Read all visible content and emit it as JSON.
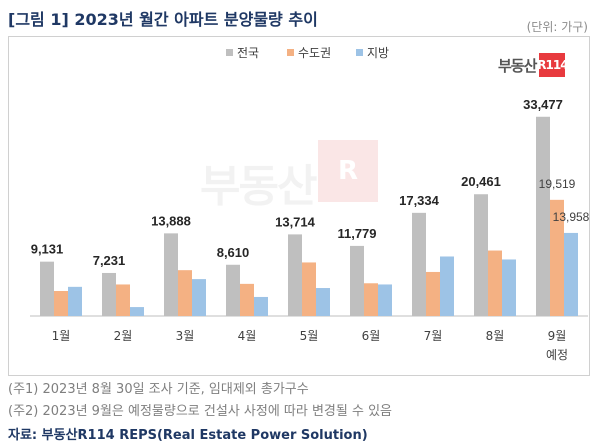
{
  "header": {
    "title": "[그림 1] 2023년 월간 아파트 분양물량 추이",
    "unit": "(단위: 가구)"
  },
  "logo": {
    "text": "부동산",
    "box": "R114"
  },
  "notes": [
    "(주1) 2023년 8월 30일 조사 기준, 임대제외 총가구수",
    "(주2) 2023년 9월은 예정물량으로 건설사 사정에 따라 변경될 수 있음"
  ],
  "source": "자료: 부동산R114 REPS(Real Estate Power Solution)",
  "chart_data": {
    "type": "bar",
    "categories": [
      "1월",
      "2월",
      "3월",
      "4월",
      "5월",
      "6월",
      "7월",
      "8월",
      "9월\n예정"
    ],
    "series": [
      {
        "name": "전국",
        "color": "#bfbfbf",
        "values": [
          9131,
          7231,
          13888,
          8610,
          13714,
          11779,
          17334,
          20461,
          33477
        ]
      },
      {
        "name": "수도권",
        "color": "#f4b183",
        "values": [
          4200,
          5300,
          7700,
          5400,
          9000,
          5500,
          7400,
          11000,
          19519
        ]
      },
      {
        "name": "지방",
        "color": "#9dc3e6",
        "values": [
          4900,
          1500,
          6200,
          3200,
          4700,
          5300,
          10000,
          9500,
          13958
        ]
      }
    ],
    "total_labels": [
      "9,131",
      "7,231",
      "13,888",
      "8,610",
      "13,714",
      "11,779",
      "17,334",
      "20,461",
      "33,477"
    ],
    "last_series_labels": [
      "19,519",
      "13,958"
    ],
    "ylim": [
      0,
      36000
    ],
    "legend_position": "top-center",
    "grid": false
  }
}
